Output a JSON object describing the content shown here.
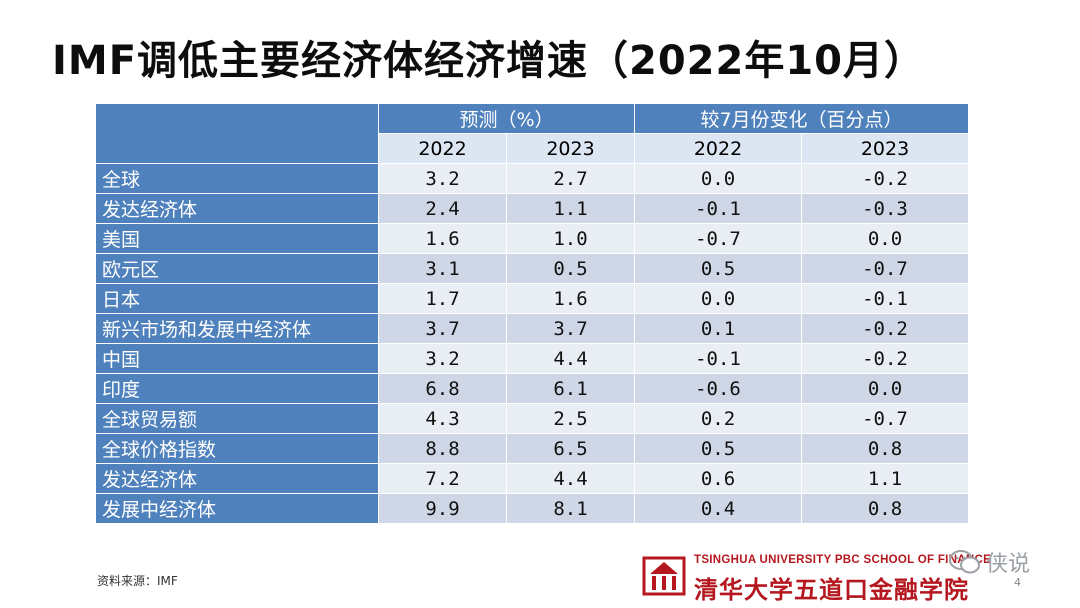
{
  "title": "IMF调低主要经济体经济增速（2022年10月）",
  "table": {
    "group_headers": [
      "预测（%）",
      "较7月份变化（百分点）"
    ],
    "year_headers": [
      "2022",
      "2023",
      "2022",
      "2023"
    ],
    "rows": [
      {
        "label": "全球",
        "values": [
          "3.2",
          "2.7",
          "0.0",
          "-0.2"
        ]
      },
      {
        "label": "发达经济体",
        "values": [
          "2.4",
          "1.1",
          "-0.1",
          "-0.3"
        ]
      },
      {
        "label": "美国",
        "values": [
          "1.6",
          "1.0",
          "-0.7",
          "0.0"
        ]
      },
      {
        "label": "欧元区",
        "values": [
          "3.1",
          "0.5",
          "0.5",
          "-0.7"
        ]
      },
      {
        "label": "日本",
        "values": [
          "1.7",
          "1.6",
          "0.0",
          "-0.1"
        ]
      },
      {
        "label": "新兴市场和发展中经济体",
        "values": [
          "3.7",
          "3.7",
          "0.1",
          "-0.2"
        ]
      },
      {
        "label": "中国",
        "values": [
          "3.2",
          "4.4",
          "-0.1",
          "-0.2"
        ]
      },
      {
        "label": "印度",
        "values": [
          "6.8",
          "6.1",
          "-0.6",
          "0.0"
        ]
      },
      {
        "label": "全球贸易额",
        "values": [
          "4.3",
          "2.5",
          "0.2",
          "-0.7"
        ]
      },
      {
        "label": "全球价格指数",
        "values": [
          "8.8",
          "6.5",
          "0.5",
          "0.8"
        ]
      },
      {
        "label": "发达经济体",
        "values": [
          "7.2",
          "4.4",
          "0.6",
          "1.1"
        ]
      },
      {
        "label": "发展中经济体",
        "values": [
          "9.9",
          "8.1",
          "0.4",
          "0.8"
        ]
      }
    ]
  },
  "footer": {
    "source": "资料来源：IMF",
    "logo_en": "TSINGHUA UNIVERSITY PBC SCHOOL OF FINANCE",
    "logo_cn": "清华大学五道口金融学院",
    "watermark": "侠说",
    "page_number": "4"
  },
  "colors": {
    "header_blue": "#4f81bd",
    "row_light": "#e9edf4",
    "row_dark": "#cfd7e6",
    "logo_red": "#b5171e"
  },
  "icons": [
    "tsinghua-pbcsf-logo-icon",
    "wechat-icon"
  ]
}
